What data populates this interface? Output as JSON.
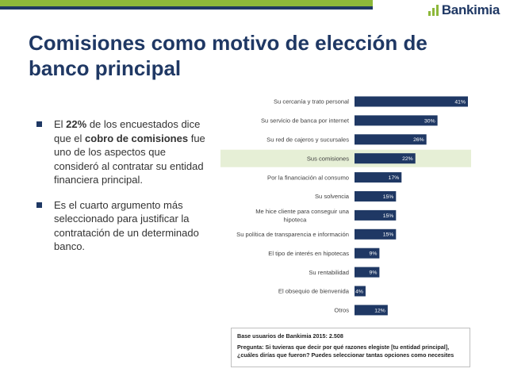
{
  "brand": {
    "name": "Bankimia",
    "green": "#8db83a",
    "navy": "#1f3864"
  },
  "slide": {
    "title_line1": "Comisiones como motivo de elección de",
    "title_line2": "banco principal"
  },
  "bullets": {
    "b1": {
      "pre": "El ",
      "pct": "22%",
      "mid": " de los encuestados dice que el ",
      "bold": "cobro de comisiones",
      "post": " fue uno de los aspectos que consideró al contratar su entidad financiera principal."
    },
    "b2": {
      "text": "Es el cuarto argumento más seleccionado para justificar la contratación de un determinado banco."
    }
  },
  "chart_data": {
    "type": "bar",
    "orientation": "horizontal",
    "bar_color": "#1f3864",
    "highlight_color": "#e6efd6",
    "highlight_category": "Sus comisiones",
    "categories": [
      [
        "Su cercanía y trato personal"
      ],
      [
        "Su servicio de banca por internet"
      ],
      [
        "Su red de cajeros y sucursales"
      ],
      [
        "Sus comisiones"
      ],
      [
        "Por la financiación al consumo"
      ],
      [
        "Su solvencia"
      ],
      [
        "Me hice cliente para conseguir una",
        "hipoteca"
      ],
      [
        "Su política de transparencia e información"
      ],
      [
        "El tipo de interés en hipotecas"
      ],
      [
        "Su rentabilidad"
      ],
      [
        "El obsequio de bienvenida"
      ],
      [
        "Otros"
      ]
    ],
    "values": [
      41,
      30,
      26,
      22,
      17,
      15,
      15,
      15,
      9,
      9,
      4,
      12
    ],
    "value_labels": [
      "41%",
      "30%",
      "26%",
      "22%",
      "17%",
      "15%",
      "15%",
      "15%",
      "9%",
      "9%",
      "4%",
      "12%"
    ],
    "xlim": [
      0,
      41
    ],
    "grid": false
  },
  "note": {
    "base": "Base usuarios de Bankimia 2015: 2.508",
    "question": "Pregunta: Si tuvieras que decir por qué razones elegiste [tu entidad principal], ¿cuáles dirías que fueron? Puedes seleccionar tantas opciones como necesites"
  }
}
